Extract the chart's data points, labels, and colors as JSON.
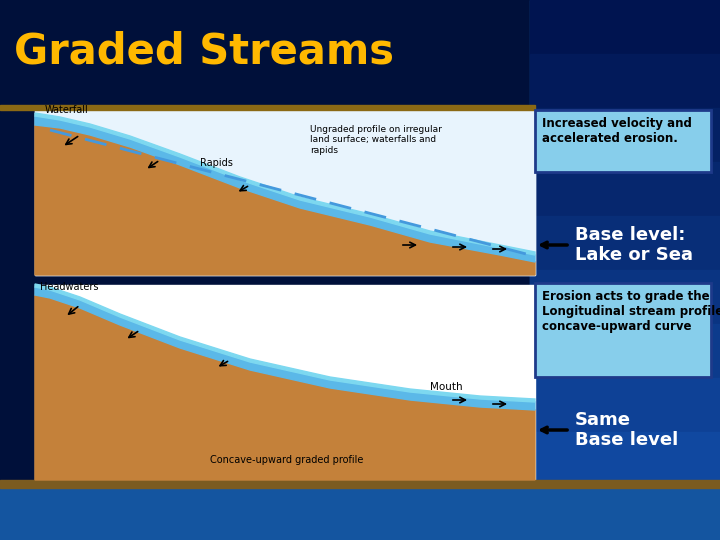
{
  "title": "Graded Streams",
  "title_color": "#FFB800",
  "title_fontsize": 30,
  "bg_left_color": "#00103A",
  "bg_right_color": "#1455A0",
  "box1_text": "Increased velocity and\naccelerated erosion.",
  "box1_bg": "#87CEEB",
  "box1_border": "#1E3A8A",
  "arrow1_text": "Base level:\nLake or Sea",
  "box2_text": "Erosion acts to grade the\nLongitudinal stream profile to\nconcave-upward curve",
  "box2_bg": "#87CEEB",
  "box2_border": "#1E3A8A",
  "arrow2_text": "Same\nBase level",
  "terrain_color": "#C4813A",
  "water_color": "#5BB8E8",
  "water_line_color": "#7DD8F0",
  "white": "#FFFFFF",
  "tan_bar_color": "#8B6914",
  "bottom_blue": "#1455A0"
}
